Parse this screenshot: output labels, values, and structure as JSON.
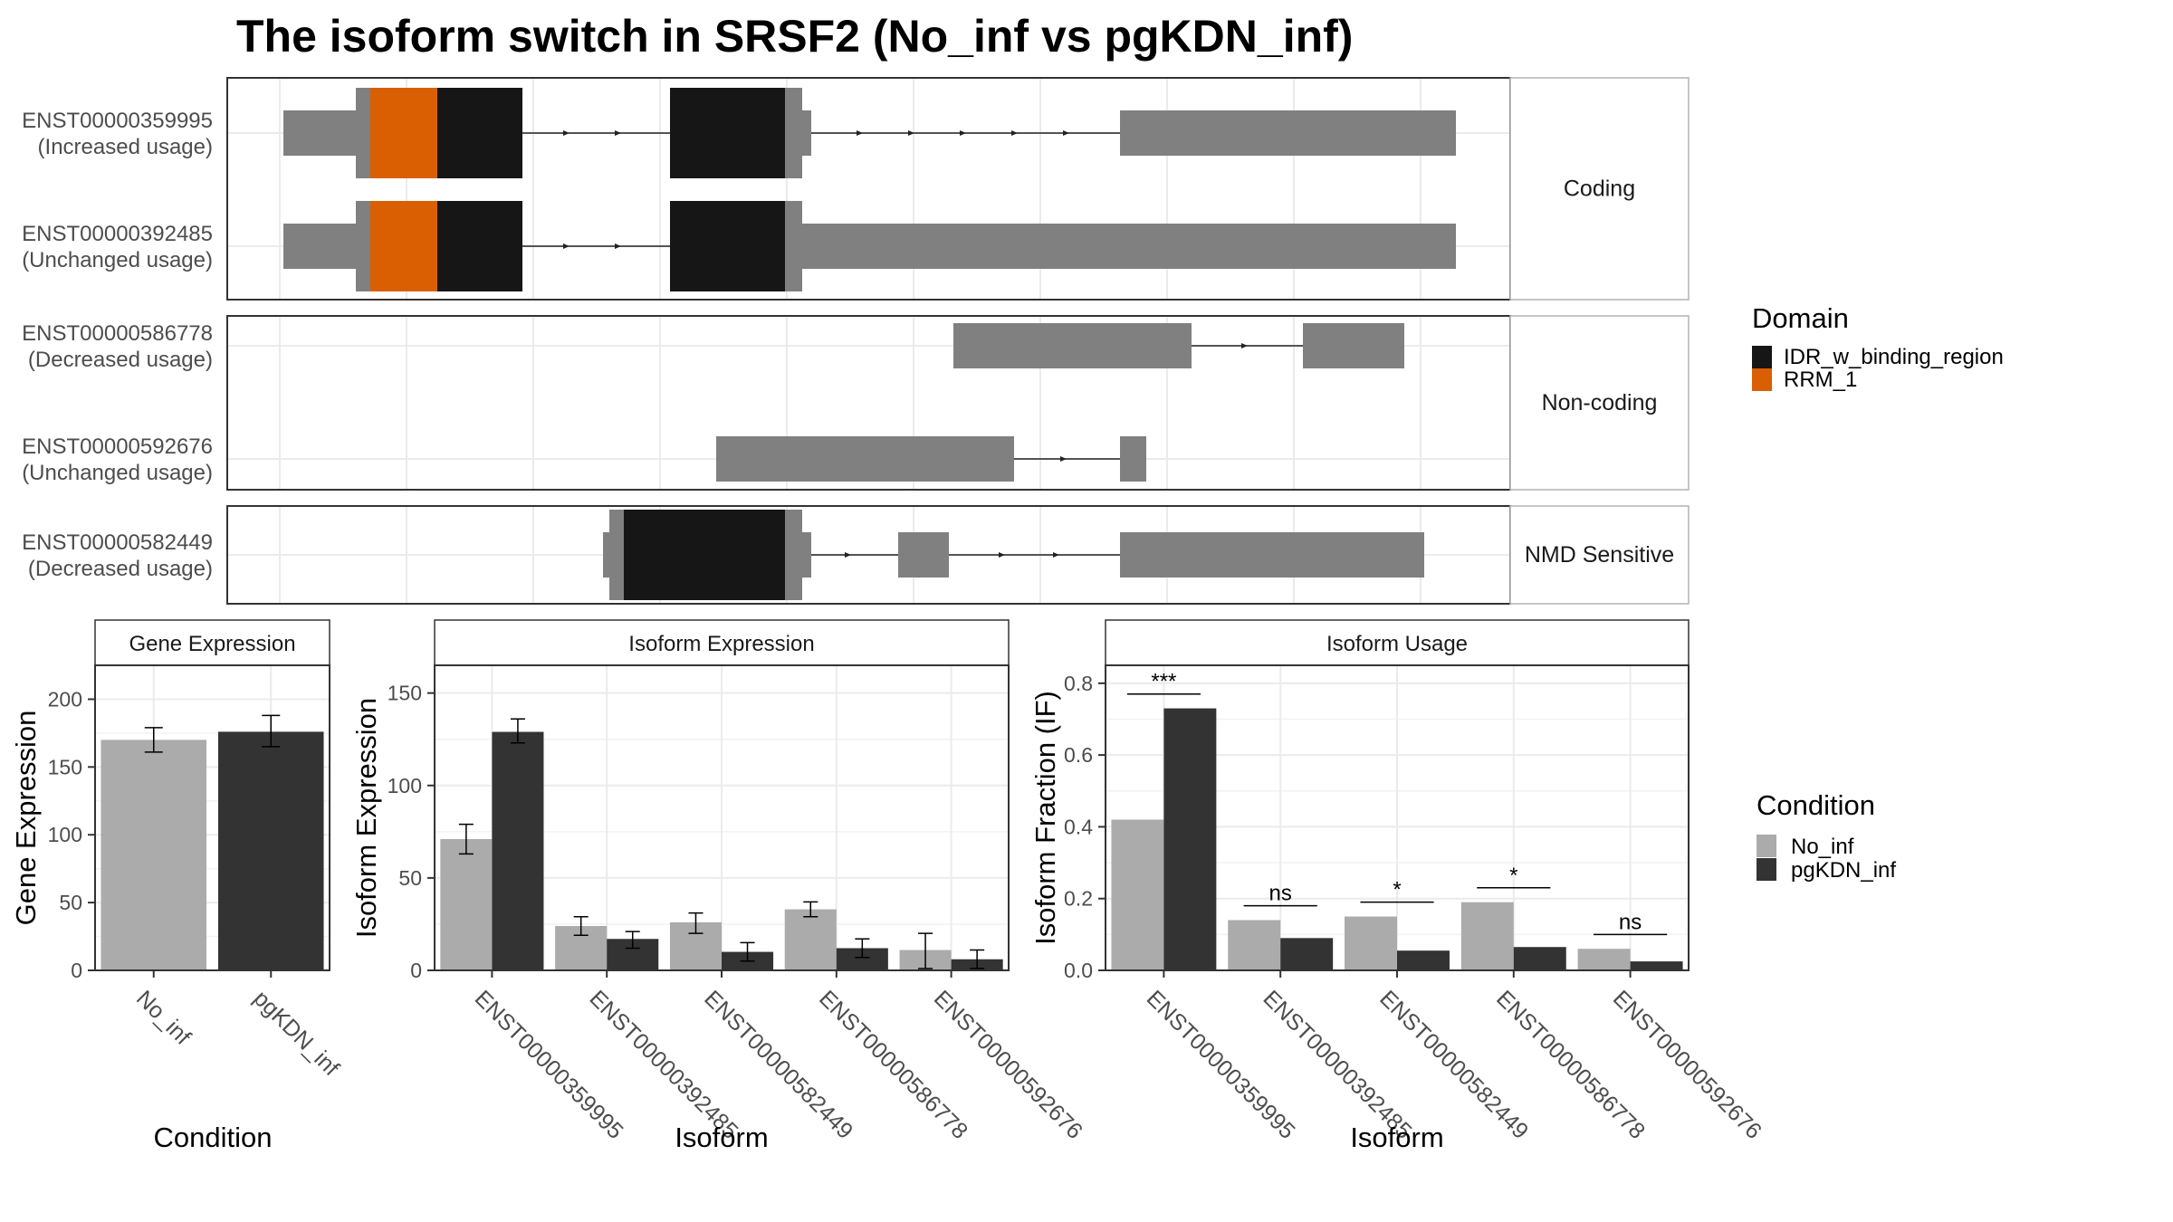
{
  "title": "The isoform switch in SRSF2 (No_inf vs pgKDN_inf)",
  "colors": {
    "exon": "#808080",
    "IDR_w_binding_region": "#161616",
    "RRM_1": "#d95f02",
    "No_inf": "#ababab",
    "pgKDN_inf": "#333333"
  },
  "structure": {
    "panels": [
      {
        "label": "Coding",
        "isoforms": [
          {
            "id": "ENST00000359995",
            "usage": "(Increased usage)",
            "exons": [
              [
                0.06,
                0.85
              ]
            ],
            "introns": [
              [
                0.2,
                0.31
              ],
              [
                0.41,
                0.67
              ]
            ]
          },
          {
            "id": "ENST00000392485",
            "usage": "(Unchanged usage)",
            "exons": [
              [
                0.06,
                0.85
              ]
            ],
            "introns": [
              [
                0.2,
                0.31
              ]
            ]
          }
        ]
      },
      {
        "label": "Non-coding",
        "isoforms": [
          {
            "id": "ENST00000586778",
            "usage": "(Decreased usage)"
          },
          {
            "id": "ENST00000592676",
            "usage": "(Unchanged usage)"
          }
        ]
      },
      {
        "label": "NMD Sensitive",
        "isoforms": [
          {
            "id": "ENST00000582449",
            "usage": "(Decreased usage)"
          }
        ]
      }
    ],
    "legend": {
      "title": "Domain",
      "items": [
        "IDR_w_binding_region",
        "RRM_1"
      ]
    }
  },
  "chart_data": [
    {
      "type": "bar",
      "title": "Gene Expression",
      "xlabel": "Condition",
      "ylabel": "Gene Expression",
      "categories": [
        "No_inf",
        "pgKDN_inf"
      ],
      "values": [
        170,
        176
      ],
      "errors": [
        [
          161,
          179
        ],
        [
          165,
          188
        ]
      ],
      "ylim": [
        0,
        225
      ],
      "yticks": [
        0,
        50,
        100,
        150,
        200
      ]
    },
    {
      "type": "bar",
      "title": "Isoform Expression",
      "xlabel": "Isoform",
      "ylabel": "Isoform Expression",
      "categories": [
        "ENST00000359995",
        "ENST00000392485",
        "ENST00000582449",
        "ENST00000586778",
        "ENST00000592676"
      ],
      "series": [
        {
          "name": "No_inf",
          "values": [
            71,
            24,
            26,
            33,
            11
          ],
          "errors": [
            [
              63,
              79
            ],
            [
              19,
              29
            ],
            [
              20,
              31
            ],
            [
              29,
              37
            ],
            [
              1,
              20
            ]
          ]
        },
        {
          "name": "pgKDN_inf",
          "values": [
            129,
            17,
            10,
            12,
            6
          ],
          "errors": [
            [
              123,
              136
            ],
            [
              12,
              21
            ],
            [
              5,
              15
            ],
            [
              7,
              17
            ],
            [
              1,
              11
            ]
          ]
        }
      ],
      "ylim": [
        0,
        165
      ],
      "yticks": [
        0,
        50,
        100,
        150
      ]
    },
    {
      "type": "bar",
      "title": "Isoform Usage",
      "xlabel": "Isoform",
      "ylabel": "Isoform Fraction (IF)",
      "categories": [
        "ENST00000359995",
        "ENST00000392485",
        "ENST00000582449",
        "ENST00000586778",
        "ENST00000592676"
      ],
      "series": [
        {
          "name": "No_inf",
          "values": [
            0.42,
            0.14,
            0.15,
            0.19,
            0.06
          ]
        },
        {
          "name": "pgKDN_inf",
          "values": [
            0.73,
            0.09,
            0.055,
            0.065,
            0.025
          ]
        }
      ],
      "significance": [
        "***",
        "ns",
        "*",
        "*",
        "ns"
      ],
      "ylim": [
        0,
        0.85
      ],
      "yticks": [
        0.0,
        0.2,
        0.4,
        0.6,
        0.8
      ],
      "ytick_labels": [
        "0.0",
        "0.2",
        "0.4",
        "0.6",
        "0.8"
      ]
    }
  ],
  "condition_legend": {
    "title": "Condition",
    "items": [
      "No_inf",
      "pgKDN_inf"
    ]
  }
}
